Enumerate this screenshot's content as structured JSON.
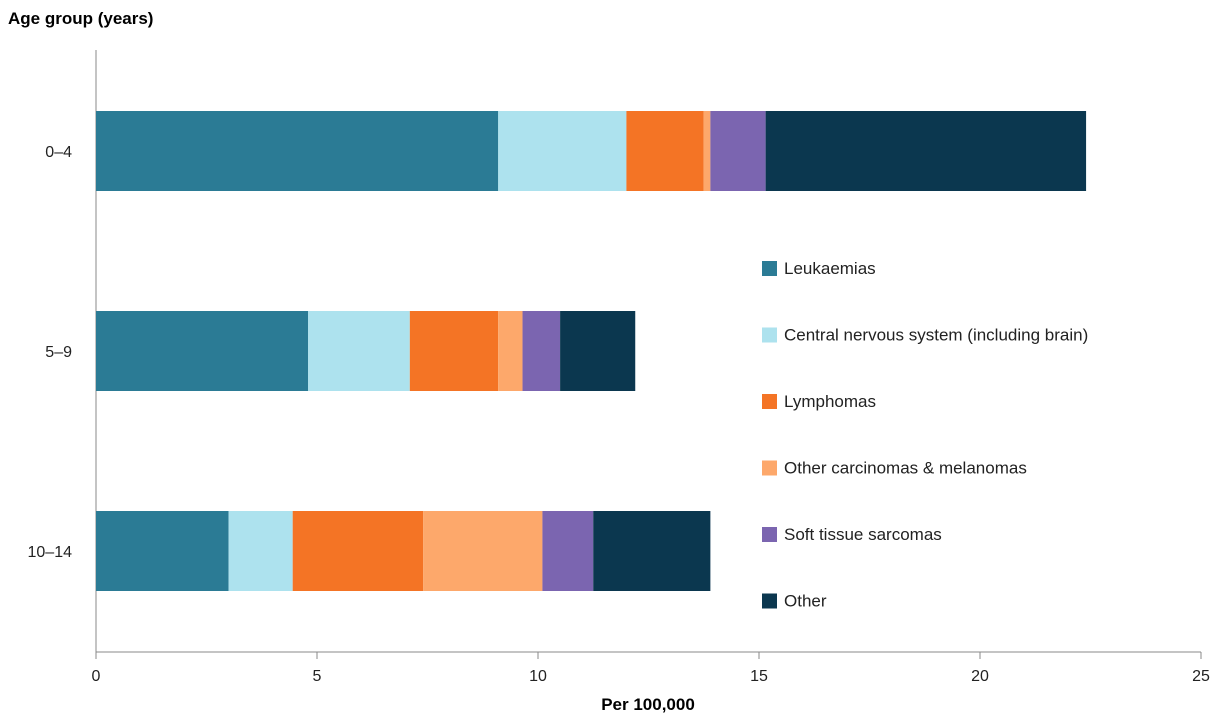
{
  "chart_data": {
    "type": "bar",
    "orientation": "horizontal",
    "stacked": true,
    "ylabel": "Age group (years)",
    "xlabel": "Per 100,000",
    "categories": [
      "0–4",
      "5–9",
      "10–14"
    ],
    "xlim": [
      0,
      25
    ],
    "xticks": [
      0,
      5,
      10,
      15,
      20,
      25
    ],
    "grid": false,
    "legend_position": "right",
    "series": [
      {
        "name": "Leukaemias",
        "color": "#2b7b95",
        "values": [
          9.1,
          4.8,
          3.0
        ]
      },
      {
        "name": "Central nervous system (including brain)",
        "color": "#ade2ee",
        "values": [
          2.9,
          2.3,
          1.45
        ]
      },
      {
        "name": "Lymphomas",
        "color": "#f47425",
        "values": [
          1.75,
          2.0,
          2.95
        ]
      },
      {
        "name": "Other carcinomas & melanomas",
        "color": "#fda86b",
        "values": [
          0.15,
          0.55,
          2.7
        ]
      },
      {
        "name": "Soft tissue sarcomas",
        "color": "#7b65b0",
        "values": [
          1.25,
          0.85,
          1.15
        ]
      },
      {
        "name": "Other",
        "color": "#0b374f",
        "values": [
          7.25,
          1.7,
          2.65
        ]
      }
    ]
  }
}
